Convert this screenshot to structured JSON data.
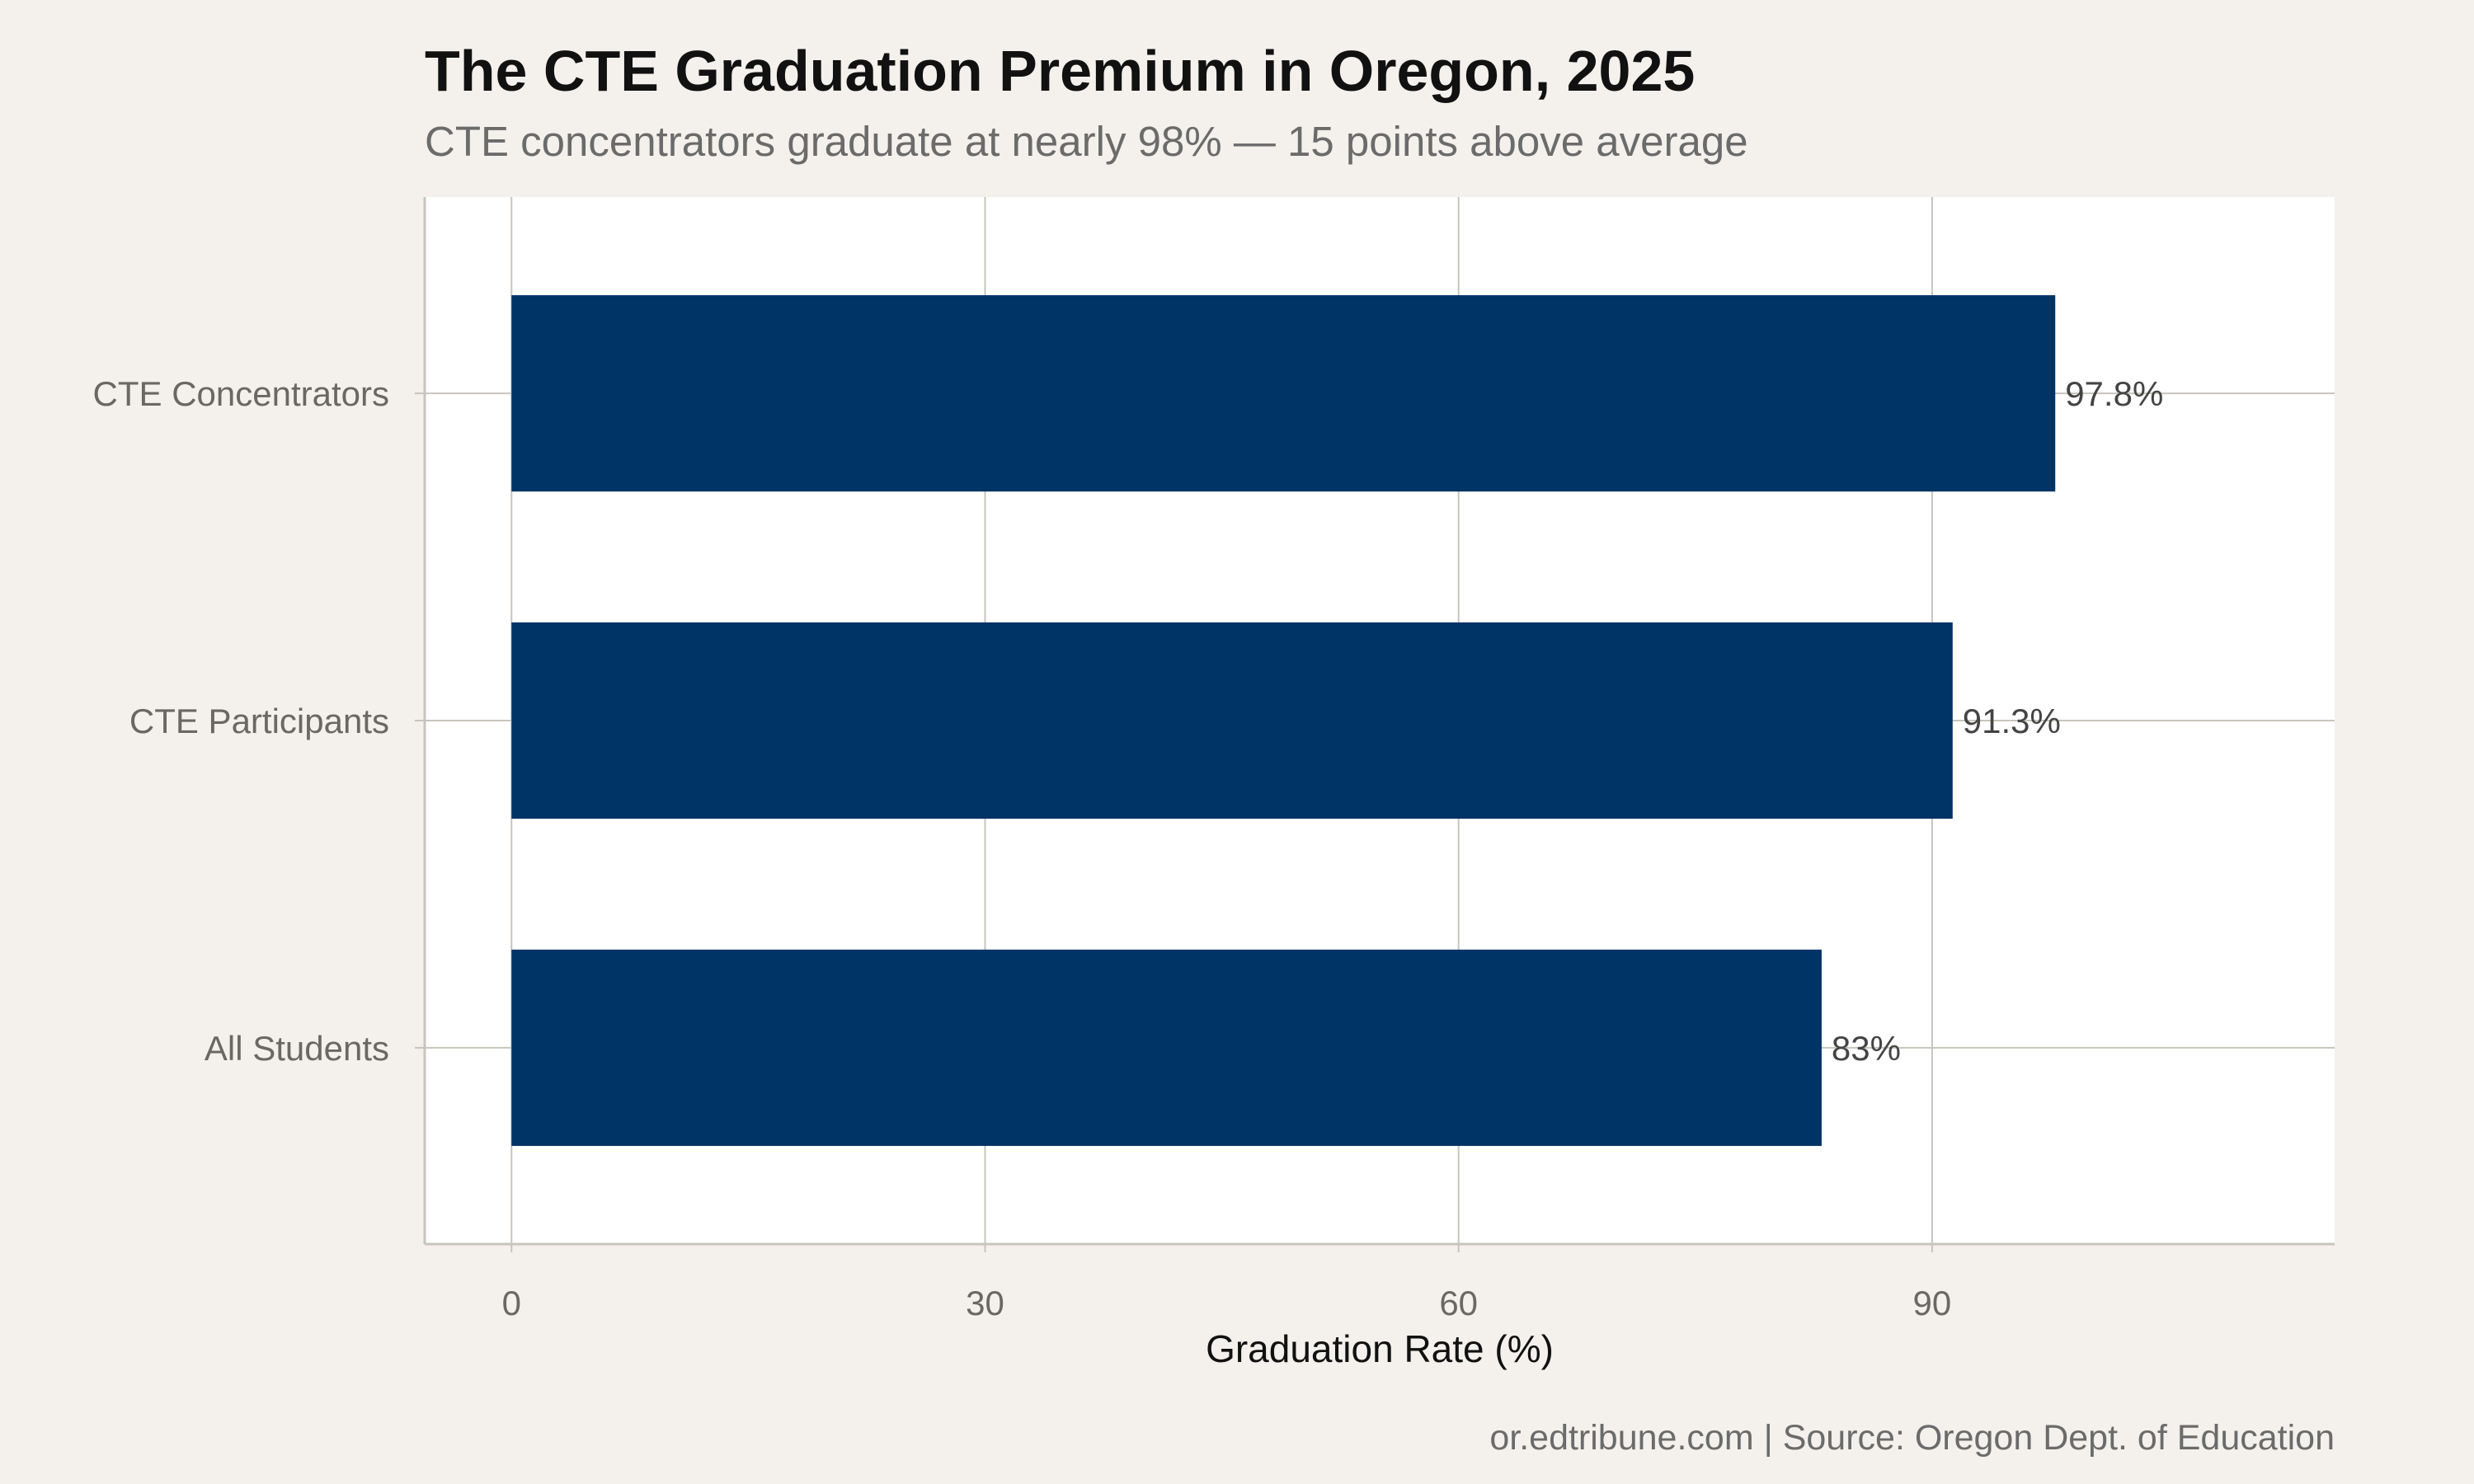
{
  "chart_data": {
    "type": "bar",
    "orientation": "horizontal",
    "title": "The CTE Graduation Premium in Oregon, 2025",
    "subtitle": "CTE concentrators graduate at nearly 98% — 15 points above average",
    "categories": [
      "CTE Concentrators",
      "CTE Participants",
      "All Students"
    ],
    "values": [
      97.8,
      91.3,
      83
    ],
    "data_labels": [
      "97.8%",
      "91.3%",
      "83%"
    ],
    "xlabel": "Graduation Rate (%)",
    "ylabel": "",
    "xlim": [
      0,
      110
    ],
    "xticks": [
      0,
      30,
      60,
      90
    ],
    "xtick_labels": [
      "0",
      "30",
      "60",
      "90"
    ],
    "grid": true,
    "legend": "none",
    "caption": "or.edtribune.com | Source: Oregon Dept. of Education",
    "colors": {
      "bar": "#003366",
      "background": "#f4f1ec",
      "panel": "#ffffff",
      "grid": "#c8c4bd"
    }
  }
}
